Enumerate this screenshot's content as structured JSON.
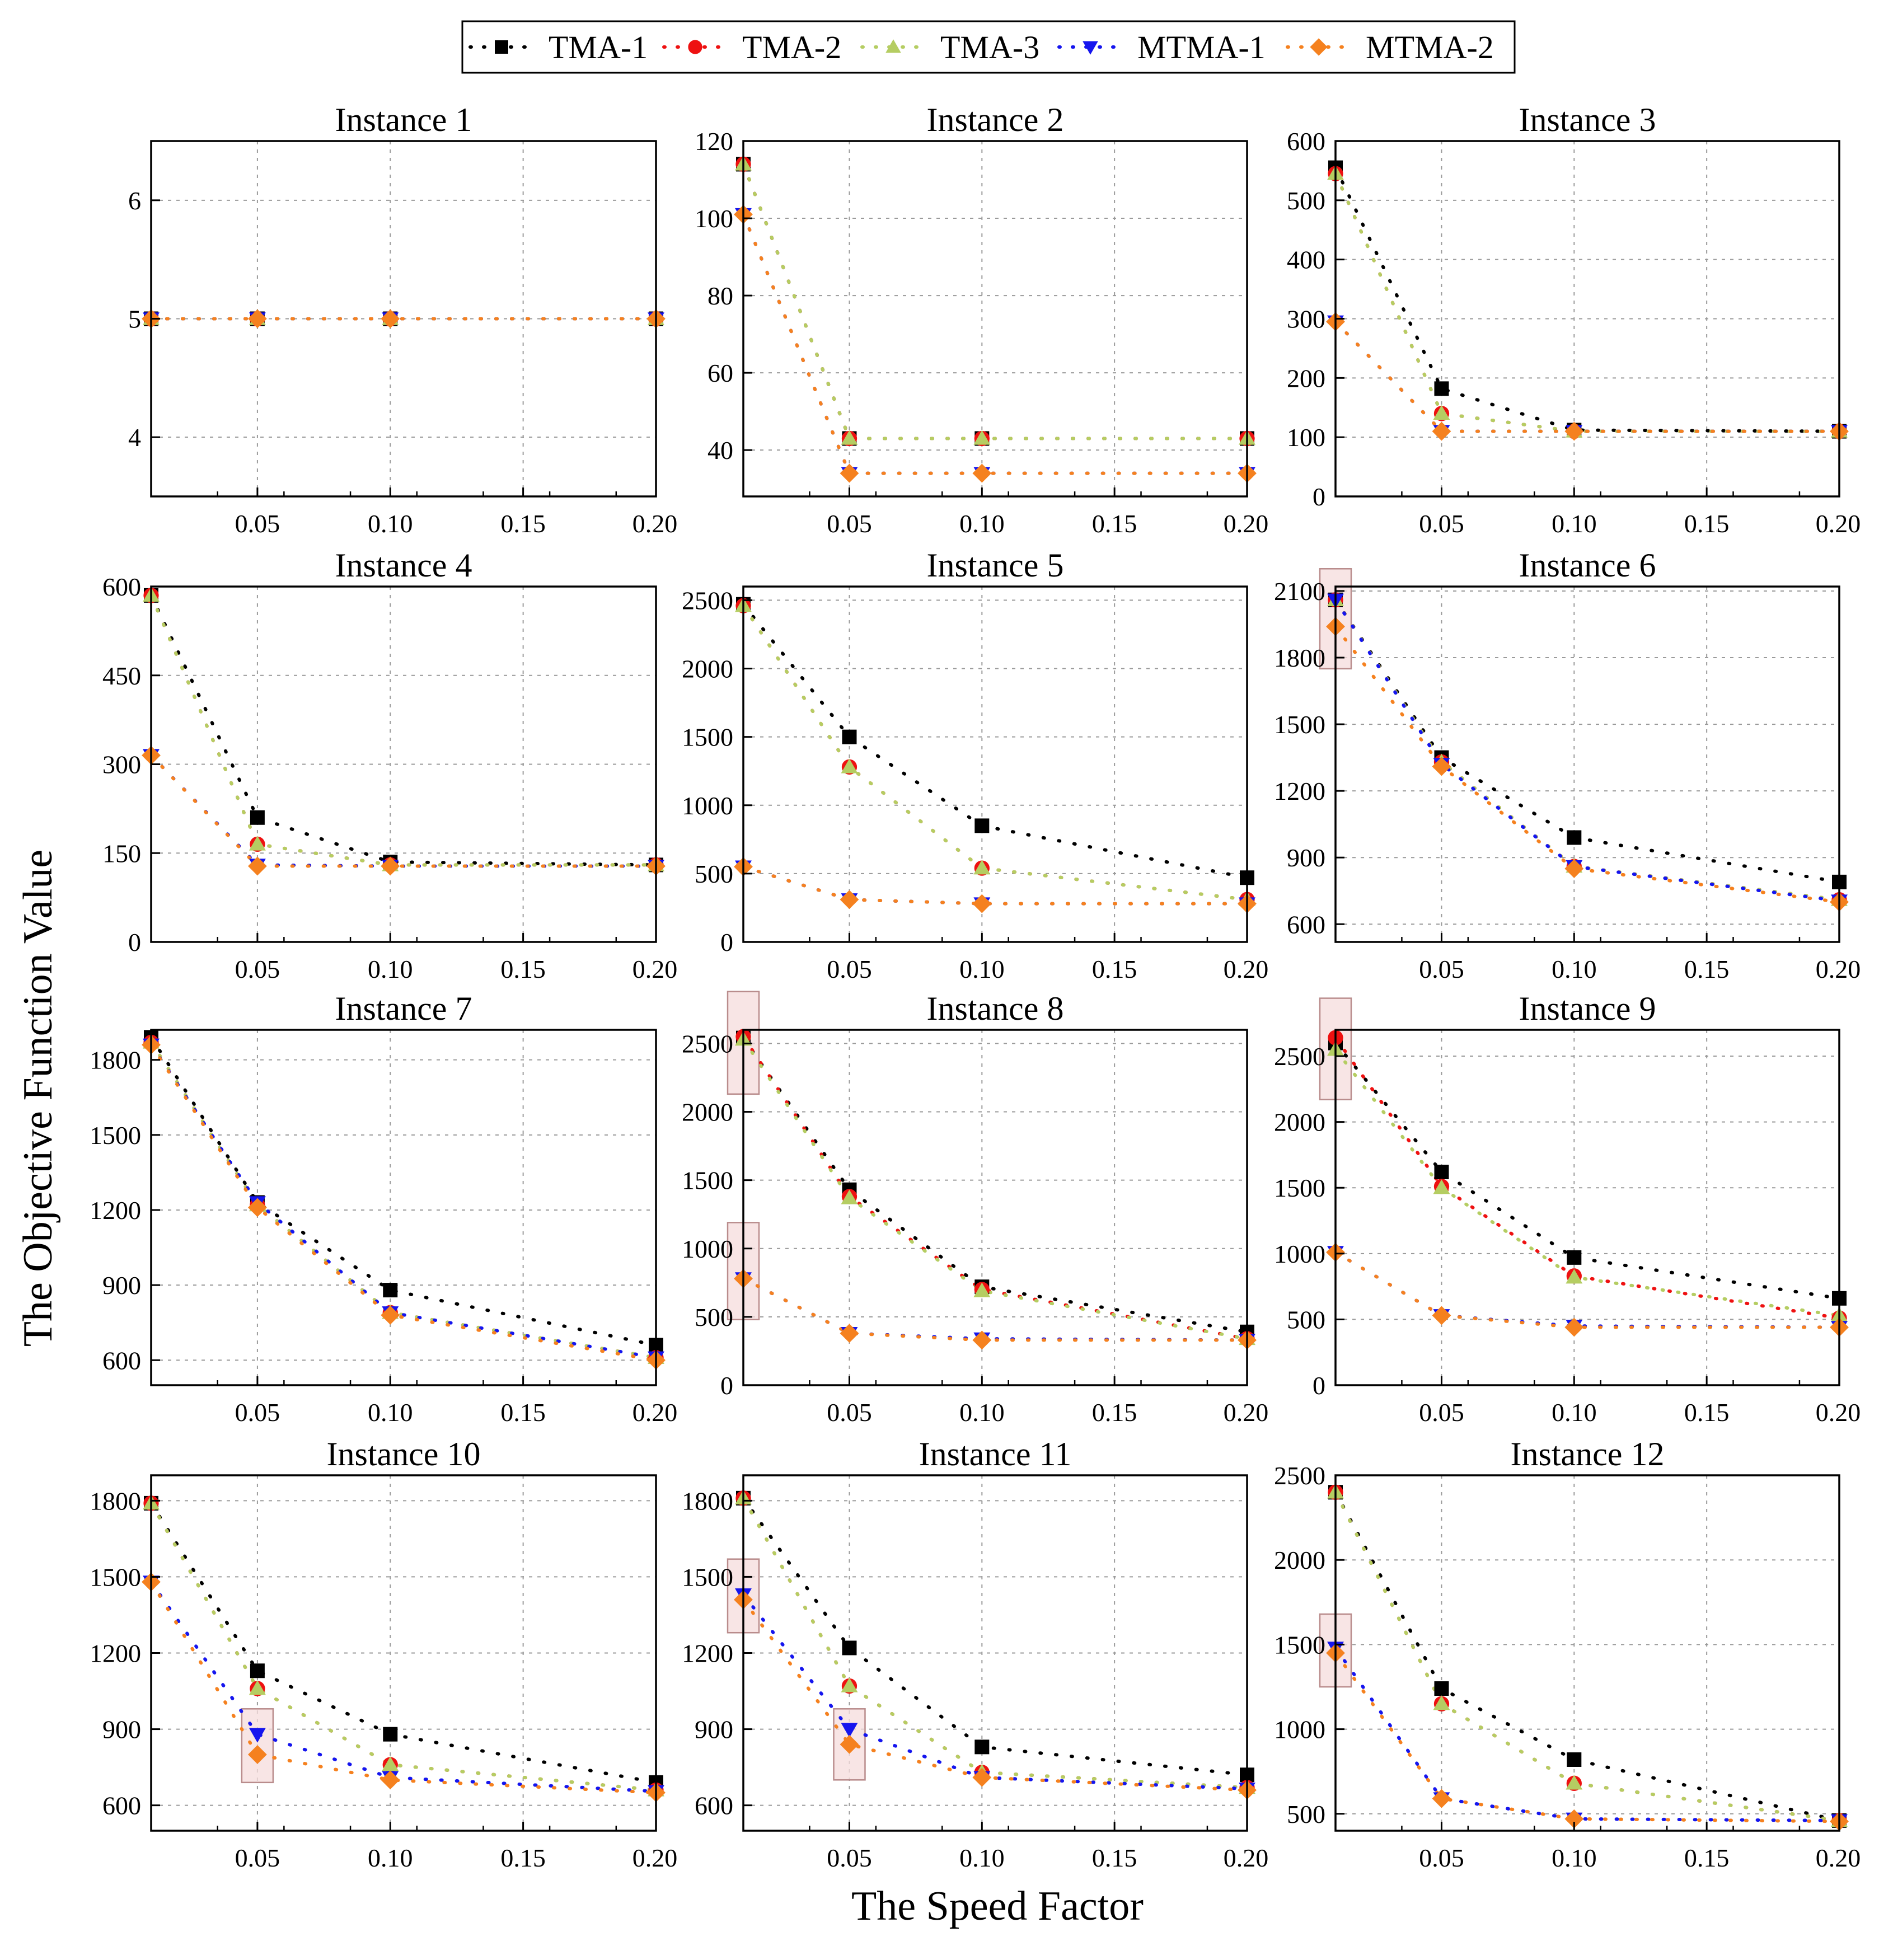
{
  "figure": {
    "xlabel": "The Speed Factor",
    "ylabel": "The Objective Function Value"
  },
  "legend": {
    "entries": [
      {
        "name": "TMA-1",
        "color": "#000000",
        "marker": "square"
      },
      {
        "name": "TMA-2",
        "color": "#ee1111",
        "marker": "circle"
      },
      {
        "name": "TMA-3",
        "color": "#b5cd62",
        "marker": "triangle-up"
      },
      {
        "name": "MTMA-1",
        "color": "#1515ee",
        "marker": "triangle-down"
      },
      {
        "name": "MTMA-2",
        "color": "#f5811f",
        "marker": "diamond"
      }
    ]
  },
  "chart_data": [
    {
      "type": "line",
      "title": "Instance 1",
      "x": [
        0.01,
        0.05,
        0.1,
        0.2
      ],
      "xlim": [
        0.01,
        0.2
      ],
      "xticks": [
        0.05,
        0.1,
        0.15,
        0.2
      ],
      "xticklabels": [
        "0.05",
        "0.10",
        "0.15",
        "0.20"
      ],
      "ylim": [
        3.5,
        6.5
      ],
      "yticks": [
        4,
        5,
        6
      ],
      "yticklabels": [
        "4",
        "5",
        "6"
      ],
      "series": [
        {
          "name": "TMA-1",
          "values": [
            5,
            5,
            5,
            5
          ]
        },
        {
          "name": "TMA-2",
          "values": [
            5,
            5,
            5,
            5
          ]
        },
        {
          "name": "TMA-3",
          "values": [
            5,
            5,
            5,
            5
          ]
        },
        {
          "name": "MTMA-1",
          "values": [
            5,
            5,
            5,
            5
          ]
        },
        {
          "name": "MTMA-2",
          "values": [
            5,
            5,
            5,
            5
          ]
        }
      ],
      "highlights": []
    },
    {
      "type": "line",
      "title": "Instance 2",
      "x": [
        0.01,
        0.05,
        0.1,
        0.2
      ],
      "xlim": [
        0.01,
        0.2
      ],
      "xticks": [
        0.05,
        0.1,
        0.15,
        0.2
      ],
      "xticklabels": [
        "0.05",
        "0.10",
        "0.15",
        "0.20"
      ],
      "ylim": [
        28,
        120
      ],
      "yticks": [
        40,
        60,
        80,
        100,
        120
      ],
      "yticklabels": [
        "40",
        "60",
        "80",
        "100",
        "120"
      ],
      "series": [
        {
          "name": "TMA-1",
          "values": [
            114,
            43,
            43,
            43
          ]
        },
        {
          "name": "TMA-2",
          "values": [
            114,
            43,
            43,
            43
          ]
        },
        {
          "name": "TMA-3",
          "values": [
            114,
            43,
            43,
            43
          ]
        },
        {
          "name": "MTMA-1",
          "values": [
            101,
            34,
            34,
            34
          ]
        },
        {
          "name": "MTMA-2",
          "values": [
            101,
            34,
            34,
            34
          ]
        }
      ],
      "highlights": []
    },
    {
      "type": "line",
      "title": "Instance 3",
      "x": [
        0.01,
        0.05,
        0.1,
        0.2
      ],
      "xlim": [
        0.01,
        0.2
      ],
      "xticks": [
        0.05,
        0.1,
        0.15,
        0.2
      ],
      "xticklabels": [
        "0.05",
        "0.10",
        "0.15",
        "0.20"
      ],
      "ylim": [
        0,
        600
      ],
      "yticks": [
        0,
        100,
        200,
        300,
        400,
        500,
        600
      ],
      "yticklabels": [
        "0",
        "100",
        "200",
        "300",
        "400",
        "500",
        "600"
      ],
      "series": [
        {
          "name": "TMA-1",
          "values": [
            555,
            182,
            112,
            110
          ]
        },
        {
          "name": "TMA-2",
          "values": [
            545,
            140,
            110,
            110
          ]
        },
        {
          "name": "TMA-3",
          "values": [
            545,
            140,
            110,
            110
          ]
        },
        {
          "name": "MTMA-1",
          "values": [
            295,
            110,
            110,
            110
          ]
        },
        {
          "name": "MTMA-2",
          "values": [
            295,
            110,
            110,
            110
          ]
        }
      ],
      "highlights": []
    },
    {
      "type": "line",
      "title": "Instance 4",
      "x": [
        0.01,
        0.05,
        0.1,
        0.2
      ],
      "xlim": [
        0.01,
        0.2
      ],
      "xticks": [
        0.05,
        0.1,
        0.15,
        0.2
      ],
      "xticklabels": [
        "0.05",
        "0.10",
        "0.15",
        "0.20"
      ],
      "ylim": [
        0,
        600
      ],
      "yticks": [
        0,
        150,
        300,
        450,
        600
      ],
      "yticklabels": [
        "0",
        "150",
        "300",
        "450",
        "600"
      ],
      "series": [
        {
          "name": "TMA-1",
          "values": [
            585,
            210,
            135,
            130
          ]
        },
        {
          "name": "TMA-2",
          "values": [
            585,
            165,
            130,
            130
          ]
        },
        {
          "name": "TMA-3",
          "values": [
            585,
            165,
            130,
            130
          ]
        },
        {
          "name": "MTMA-1",
          "values": [
            315,
            130,
            128,
            128
          ]
        },
        {
          "name": "MTMA-2",
          "values": [
            315,
            128,
            128,
            128
          ]
        }
      ],
      "highlights": []
    },
    {
      "type": "line",
      "title": "Instance 5",
      "x": [
        0.01,
        0.05,
        0.1,
        0.2
      ],
      "xlim": [
        0.01,
        0.2
      ],
      "xticks": [
        0.05,
        0.1,
        0.15,
        0.2
      ],
      "xticklabels": [
        "0.05",
        "0.10",
        "0.15",
        "0.20"
      ],
      "ylim": [
        0,
        2600
      ],
      "yticks": [
        0,
        500,
        1000,
        1500,
        2000,
        2500
      ],
      "yticklabels": [
        "0",
        "500",
        "1000",
        "1500",
        "2000",
        "2500"
      ],
      "series": [
        {
          "name": "TMA-1",
          "values": [
            2470,
            1500,
            850,
            470
          ]
        },
        {
          "name": "TMA-2",
          "values": [
            2460,
            1280,
            540,
            310
          ]
        },
        {
          "name": "TMA-3",
          "values": [
            2460,
            1280,
            540,
            310
          ]
        },
        {
          "name": "MTMA-1",
          "values": [
            550,
            310,
            280,
            280
          ]
        },
        {
          "name": "MTMA-2",
          "values": [
            550,
            310,
            280,
            280
          ]
        }
      ],
      "highlights": []
    },
    {
      "type": "line",
      "title": "Instance 6",
      "x": [
        0.01,
        0.05,
        0.1,
        0.2
      ],
      "xlim": [
        0.01,
        0.2
      ],
      "xticks": [
        0.05,
        0.1,
        0.15,
        0.2
      ],
      "xticklabels": [
        "0.05",
        "0.10",
        "0.15",
        "0.20"
      ],
      "ylim": [
        520,
        2120
      ],
      "yticks": [
        600,
        900,
        1200,
        1500,
        1800,
        2100
      ],
      "yticklabels": [
        "600",
        "900",
        "1200",
        "1500",
        "1800",
        "2100"
      ],
      "series": [
        {
          "name": "TMA-1",
          "values": [
            2060,
            1350,
            990,
            790
          ]
        },
        {
          "name": "TMA-2",
          "values": [
            2060,
            1330,
            860,
            710
          ]
        },
        {
          "name": "TMA-3",
          "values": [
            2060,
            1330,
            860,
            710
          ]
        },
        {
          "name": "MTMA-1",
          "values": [
            2060,
            1320,
            860,
            705
          ]
        },
        {
          "name": "MTMA-2",
          "values": [
            1940,
            1310,
            850,
            700
          ]
        }
      ],
      "highlights": [
        {
          "x": 0.01,
          "y": [
            1750,
            2200
          ]
        }
      ]
    },
    {
      "type": "line",
      "title": "Instance 7",
      "x": [
        0.01,
        0.05,
        0.1,
        0.2
      ],
      "xlim": [
        0.01,
        0.2
      ],
      "xticks": [
        0.05,
        0.1,
        0.15,
        0.2
      ],
      "xticklabels": [
        "0.05",
        "0.10",
        "0.15",
        "0.20"
      ],
      "ylim": [
        500,
        1920
      ],
      "yticks": [
        600,
        900,
        1200,
        1500,
        1800
      ],
      "yticklabels": [
        "600",
        "900",
        "1200",
        "1500",
        "1800"
      ],
      "series": [
        {
          "name": "TMA-1",
          "values": [
            1890,
            1230,
            880,
            660
          ]
        },
        {
          "name": "TMA-2",
          "values": [
            1870,
            1220,
            790,
            610
          ]
        },
        {
          "name": "TMA-3",
          "values": [
            1870,
            1220,
            790,
            610
          ]
        },
        {
          "name": "MTMA-1",
          "values": [
            1860,
            1230,
            790,
            610
          ]
        },
        {
          "name": "MTMA-2",
          "values": [
            1860,
            1210,
            780,
            600
          ]
        }
      ],
      "highlights": []
    },
    {
      "type": "line",
      "title": "Instance 8",
      "x": [
        0.01,
        0.05,
        0.1,
        0.2
      ],
      "xlim": [
        0.01,
        0.2
      ],
      "xticks": [
        0.05,
        0.1,
        0.15,
        0.2
      ],
      "xticklabels": [
        "0.05",
        "0.10",
        "0.15",
        "0.20"
      ],
      "ylim": [
        0,
        2600
      ],
      "yticks": [
        0,
        500,
        1000,
        1500,
        2000,
        2500
      ],
      "yticklabels": [
        "0",
        "500",
        "1000",
        "1500",
        "2000",
        "2500"
      ],
      "series": [
        {
          "name": "TMA-1",
          "values": [
            2540,
            1430,
            720,
            390
          ]
        },
        {
          "name": "TMA-2",
          "values": [
            2550,
            1380,
            700,
            340
          ]
        },
        {
          "name": "TMA-3",
          "values": [
            2530,
            1370,
            690,
            340
          ]
        },
        {
          "name": "MTMA-1",
          "values": [
            780,
            380,
            340,
            330
          ]
        },
        {
          "name": "MTMA-2",
          "values": [
            780,
            380,
            330,
            330
          ]
        }
      ],
      "highlights": [
        {
          "x": 0.01,
          "y": [
            2130,
            2880
          ]
        },
        {
          "x": 0.01,
          "y": [
            480,
            1190
          ]
        }
      ]
    },
    {
      "type": "line",
      "title": "Instance 9",
      "x": [
        0.01,
        0.05,
        0.1,
        0.2
      ],
      "xlim": [
        0.01,
        0.2
      ],
      "xticks": [
        0.05,
        0.1,
        0.15,
        0.2
      ],
      "xticklabels": [
        "0.05",
        "0.10",
        "0.15",
        "0.20"
      ],
      "ylim": [
        0,
        2700
      ],
      "yticks": [
        0,
        500,
        1000,
        1500,
        2000,
        2500
      ],
      "yticklabels": [
        "0",
        "500",
        "1000",
        "1500",
        "2000",
        "2500"
      ],
      "series": [
        {
          "name": "TMA-1",
          "values": [
            2600,
            1620,
            970,
            660
          ]
        },
        {
          "name": "TMA-2",
          "values": [
            2640,
            1510,
            830,
            510
          ]
        },
        {
          "name": "TMA-3",
          "values": [
            2550,
            1500,
            820,
            530
          ]
        },
        {
          "name": "MTMA-1",
          "values": [
            1010,
            530,
            450,
            440
          ]
        },
        {
          "name": "MTMA-2",
          "values": [
            1010,
            530,
            440,
            440
          ]
        }
      ],
      "highlights": [
        {
          "x": 0.01,
          "y": [
            2170,
            2940
          ]
        }
      ]
    },
    {
      "type": "line",
      "title": "Instance 10",
      "x": [
        0.01,
        0.05,
        0.1,
        0.2
      ],
      "xlim": [
        0.01,
        0.2
      ],
      "xticks": [
        0.05,
        0.1,
        0.15,
        0.2
      ],
      "xticklabels": [
        "0.05",
        "0.10",
        "0.15",
        "0.20"
      ],
      "ylim": [
        500,
        1900
      ],
      "yticks": [
        600,
        900,
        1200,
        1500,
        1800
      ],
      "yticklabels": [
        "600",
        "900",
        "1200",
        "1500",
        "1800"
      ],
      "series": [
        {
          "name": "TMA-1",
          "values": [
            1790,
            1130,
            880,
            690
          ]
        },
        {
          "name": "TMA-2",
          "values": [
            1790,
            1060,
            760,
            660
          ]
        },
        {
          "name": "TMA-3",
          "values": [
            1790,
            1060,
            760,
            660
          ]
        },
        {
          "name": "MTMA-1",
          "values": [
            1480,
            880,
            710,
            655
          ]
        },
        {
          "name": "MTMA-2",
          "values": [
            1480,
            800,
            700,
            650
          ]
        }
      ],
      "highlights": [
        {
          "x": 0.05,
          "y": [
            690,
            980
          ]
        }
      ]
    },
    {
      "type": "line",
      "title": "Instance 11",
      "x": [
        0.01,
        0.05,
        0.1,
        0.2
      ],
      "xlim": [
        0.01,
        0.2
      ],
      "xticks": [
        0.05,
        0.1,
        0.15,
        0.2
      ],
      "xticklabels": [
        "0.05",
        "0.10",
        "0.15",
        "0.20"
      ],
      "ylim": [
        500,
        1900
      ],
      "yticks": [
        600,
        900,
        1200,
        1500,
        1800
      ],
      "yticklabels": [
        "600",
        "900",
        "1200",
        "1500",
        "1800"
      ],
      "series": [
        {
          "name": "TMA-1",
          "values": [
            1810,
            1220,
            830,
            720
          ]
        },
        {
          "name": "TMA-2",
          "values": [
            1810,
            1070,
            730,
            670
          ]
        },
        {
          "name": "TMA-3",
          "values": [
            1810,
            1070,
            730,
            670
          ]
        },
        {
          "name": "MTMA-1",
          "values": [
            1430,
            900,
            710,
            665
          ]
        },
        {
          "name": "MTMA-2",
          "values": [
            1410,
            840,
            710,
            660
          ]
        }
      ],
      "highlights": [
        {
          "x": 0.01,
          "y": [
            1280,
            1570
          ]
        },
        {
          "x": 0.05,
          "y": [
            700,
            980
          ]
        }
      ]
    },
    {
      "type": "line",
      "title": "Instance 12",
      "x": [
        0.01,
        0.05,
        0.1,
        0.2
      ],
      "xlim": [
        0.01,
        0.2
      ],
      "xticks": [
        0.05,
        0.1,
        0.15,
        0.2
      ],
      "xticklabels": [
        "0.05",
        "0.10",
        "0.15",
        "0.20"
      ],
      "ylim": [
        400,
        2500
      ],
      "yticks": [
        500,
        1000,
        1500,
        2000,
        2500
      ],
      "yticklabels": [
        "500",
        "1000",
        "1500",
        "2000",
        "2500"
      ],
      "series": [
        {
          "name": "TMA-1",
          "values": [
            2400,
            1240,
            820,
            460
          ]
        },
        {
          "name": "TMA-2",
          "values": [
            2400,
            1150,
            680,
            460
          ]
        },
        {
          "name": "TMA-3",
          "values": [
            2400,
            1150,
            680,
            460
          ]
        },
        {
          "name": "MTMA-1",
          "values": [
            1480,
            590,
            470,
            460
          ]
        },
        {
          "name": "MTMA-2",
          "values": [
            1450,
            590,
            470,
            455
          ]
        }
      ],
      "highlights": [
        {
          "x": 0.01,
          "y": [
            1250,
            1680
          ]
        }
      ]
    }
  ]
}
